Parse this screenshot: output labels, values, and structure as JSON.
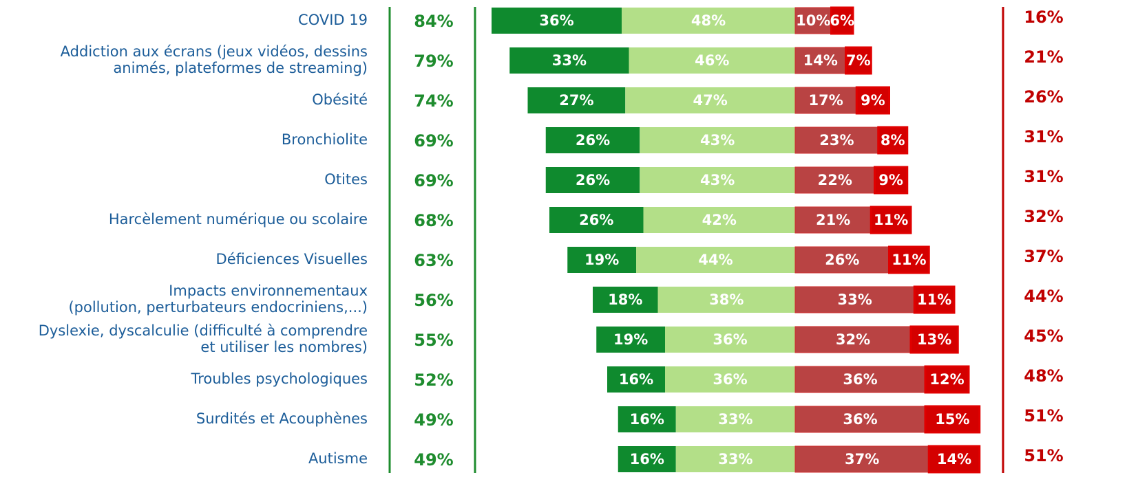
{
  "chart_data": {
    "type": "diverging-bar",
    "categories": [
      [
        "COVID 19"
      ],
      [
        "Addiction aux écrans (jeux vidéos, dessins",
        "animés, plateformes de streaming)"
      ],
      [
        "Obésité"
      ],
      [
        "Bronchiolite"
      ],
      [
        "Otites"
      ],
      [
        "Harcèlement numérique ou scolaire"
      ],
      [
        "Déficiences Visuelles"
      ],
      [
        "Impacts environnementaux",
        "(pollution, perturbateurs endocriniens,...)"
      ],
      [
        "Dyslexie, dyscalculie (difficulté à comprendre",
        "et utiliser les nombres)"
      ],
      [
        "Troubles psychologiques"
      ],
      [
        "Surdités et Acouphènes"
      ],
      [
        "Autisme"
      ]
    ],
    "series": [
      {
        "color": "#0f8a2e",
        "side": "positive",
        "values": [
          36,
          33,
          27,
          26,
          26,
          26,
          19,
          18,
          19,
          16,
          16,
          16
        ],
        "value_labels": [
          "36%",
          "33%",
          "27%",
          "26%",
          "26%",
          "26%",
          "19%",
          "18%",
          "19%",
          "16%",
          "16%",
          "16%"
        ]
      },
      {
        "color": "#b3df88",
        "side": "positive",
        "values": [
          48,
          46,
          47,
          43,
          43,
          42,
          44,
          38,
          36,
          36,
          33,
          33
        ],
        "value_labels": [
          "48%",
          "46%",
          "47%",
          "43%",
          "43%",
          "42%",
          "44%",
          "38%",
          "36%",
          "36%",
          "33%",
          "33%"
        ]
      },
      {
        "color": "#b94343",
        "side": "negative",
        "values": [
          10,
          14,
          17,
          23,
          22,
          21,
          26,
          33,
          32,
          36,
          36,
          37
        ],
        "value_labels": [
          "10%",
          "14%",
          "17%",
          "23%",
          "22%",
          "21%",
          "26%",
          "33%",
          "32%",
          "36%",
          "36%",
          "37%"
        ]
      },
      {
        "color": "#d40000",
        "side": "negative",
        "values": [
          6,
          7,
          9,
          8,
          9,
          11,
          11,
          11,
          13,
          12,
          15,
          14
        ],
        "value_labels": [
          "6%",
          "7%",
          "9%",
          "8%",
          "9%",
          "11%",
          "11%",
          "11%",
          "13%",
          "12%",
          "15%",
          "14%"
        ]
      }
    ],
    "totals": [
      {
        "color": "#1e8c2e",
        "values": [
          84,
          79,
          74,
          69,
          69,
          68,
          63,
          56,
          55,
          52,
          49,
          49
        ],
        "value_labels": [
          "84%",
          "79%",
          "74%",
          "69%",
          "69%",
          "68%",
          "63%",
          "56%",
          "55%",
          "52%",
          "49%",
          "49%"
        ]
      },
      {
        "color": "#c00000",
        "values": [
          16,
          21,
          26,
          31,
          31,
          32,
          37,
          44,
          45,
          48,
          51,
          51
        ],
        "value_labels": [
          "16%",
          "21%",
          "26%",
          "31%",
          "31%",
          "32%",
          "37%",
          "44%",
          "45%",
          "48%",
          "51%",
          "51%"
        ]
      }
    ]
  }
}
